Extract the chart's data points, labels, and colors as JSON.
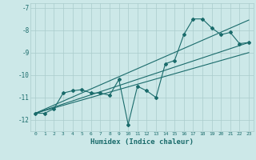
{
  "xlabel": "Humidex (Indice chaleur)",
  "bg_color": "#cce8e8",
  "grid_color": "#aacccc",
  "line_color": "#1a6b6b",
  "xlim": [
    -0.5,
    23.5
  ],
  "ylim": [
    -12.5,
    -6.8
  ],
  "yticks": [
    -12,
    -11,
    -10,
    -9,
    -8,
    -7
  ],
  "xticks": [
    0,
    1,
    2,
    3,
    4,
    5,
    6,
    7,
    8,
    9,
    10,
    11,
    12,
    13,
    14,
    15,
    16,
    17,
    18,
    19,
    20,
    21,
    22,
    23
  ],
  "line1_x": [
    0,
    1,
    2,
    3,
    4,
    5,
    6,
    7,
    8,
    9,
    10,
    11,
    12,
    13,
    14,
    15,
    16,
    17,
    18,
    19,
    20,
    21,
    22,
    23
  ],
  "line1_y": [
    -11.7,
    -11.7,
    -11.5,
    -10.8,
    -10.7,
    -10.65,
    -10.8,
    -10.8,
    -10.9,
    -10.2,
    -12.2,
    -10.5,
    -10.7,
    -11.0,
    -9.5,
    -9.35,
    -8.2,
    -7.5,
    -7.5,
    -7.9,
    -8.2,
    -8.1,
    -8.6,
    -8.55
  ],
  "line2_x": [
    0,
    23
  ],
  "line2_y": [
    -11.7,
    -8.55
  ],
  "line3_x": [
    0,
    23
  ],
  "line3_y": [
    -11.7,
    -9.0
  ],
  "line4_x": [
    0,
    23
  ],
  "line4_y": [
    -11.7,
    -7.55
  ]
}
